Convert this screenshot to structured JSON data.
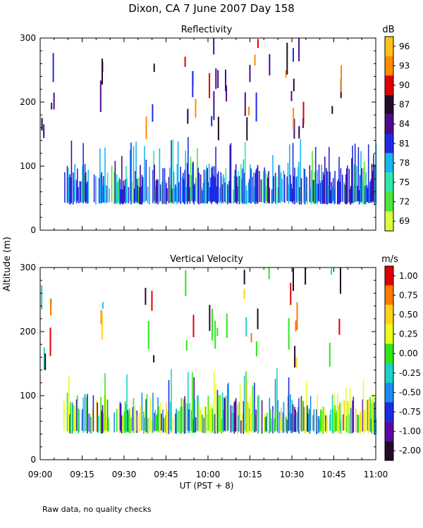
{
  "title": "Dixon, CA   7 June 2007   Day 158",
  "footer": "Raw data, no quality checks",
  "shared_ylabel": "Altitude (m)",
  "shared_xlabel": "UT  (PST + 8)",
  "chart_data": [
    {
      "type": "heatmap",
      "title": "Reflectivity",
      "xlabel": "UT  (PST + 8)",
      "ylabel": "Altitude (m)",
      "x_range": [
        0,
        120
      ],
      "x_tick_labels": [
        "09:00",
        "09:15",
        "09:30",
        "09:45",
        "10:00",
        "10:15",
        "10:30",
        "10:45",
        "11:00"
      ],
      "x_tick_values": [
        0,
        15,
        30,
        45,
        60,
        75,
        90,
        105,
        120
      ],
      "y_range": [
        0,
        300
      ],
      "y_ticks": [
        0,
        100,
        200,
        300
      ],
      "colorbar": {
        "unit": "dB",
        "labels": [
          "96",
          "93",
          "90",
          "87",
          "84",
          "81",
          "78",
          "75",
          "72",
          "69"
        ],
        "colors": [
          "#ffc21a",
          "#ff8c00",
          "#e00000",
          "#250a2a",
          "#4b0b8c",
          "#1f2ae6",
          "#1ab4f0",
          "#2ee8a8",
          "#4ce63c",
          "#d8ff3c"
        ]
      },
      "low_echo_band_m": [
        40,
        140
      ],
      "sparse_columns_min": [
        1,
        4,
        22,
        38,
        40,
        52,
        55,
        61,
        62,
        63,
        66,
        73,
        75,
        77,
        82,
        88,
        90,
        91,
        92,
        94,
        104,
        107
      ]
    },
    {
      "type": "heatmap",
      "title": "Vertical Velocity",
      "xlabel": "UT  (PST + 8)",
      "ylabel": "Altitude (m)",
      "x_range": [
        0,
        120
      ],
      "x_tick_labels": [
        "09:00",
        "09:15",
        "09:30",
        "09:45",
        "10:00",
        "10:15",
        "10:30",
        "10:45",
        "11:00"
      ],
      "x_tick_values": [
        0,
        15,
        30,
        45,
        60,
        75,
        90,
        105,
        120
      ],
      "y_range": [
        0,
        300
      ],
      "y_ticks": [
        0,
        100,
        200,
        300
      ],
      "colorbar": {
        "unit": "m/s",
        "labels": [
          "1.00",
          "0.75",
          "0.50",
          "0.25",
          "0.00",
          "-0.25",
          "-0.50",
          "-0.75",
          "-1.00",
          "-2.00"
        ],
        "colors": [
          "#e00000",
          "#ff7a00",
          "#ffd21a",
          "#e8ff1a",
          "#2ee61a",
          "#1ad2c8",
          "#1a8cf0",
          "#1a2ae6",
          "#5a0aa0",
          "#250a2a"
        ]
      },
      "low_echo_band_m": [
        40,
        140
      ],
      "sparse_columns_min": [
        1,
        4,
        22,
        38,
        40,
        52,
        55,
        61,
        62,
        63,
        66,
        73,
        75,
        77,
        82,
        88,
        90,
        91,
        92,
        94,
        104,
        107
      ]
    }
  ]
}
